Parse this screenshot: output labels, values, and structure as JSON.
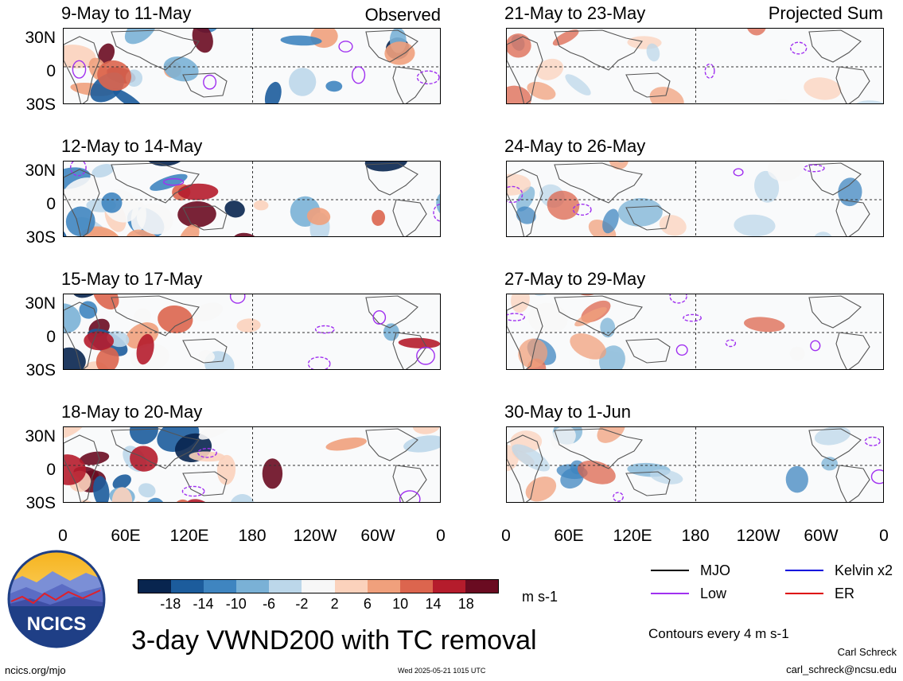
{
  "left_tag": "Observed",
  "right_tag": "Projected Sum",
  "left_panels": [
    {
      "title": "9-May to 11-May"
    },
    {
      "title": "12-May to 14-May"
    },
    {
      "title": "15-May to 17-May"
    },
    {
      "title": "18-May to 20-May"
    }
  ],
  "right_panels": [
    {
      "title": "21-May to 23-May"
    },
    {
      "title": "24-May to 26-May"
    },
    {
      "title": "27-May to 29-May"
    },
    {
      "title": "30-May to 1-Jun"
    }
  ],
  "lat_labels": [
    "30N",
    "0",
    "30S"
  ],
  "lon_labels": [
    "0",
    "60E",
    "120E",
    "180",
    "120W",
    "60W",
    "0"
  ],
  "colorbar": {
    "ticks": [
      "-18",
      "-14",
      "-10",
      "-6",
      "-2",
      "2",
      "6",
      "10",
      "14",
      "18"
    ],
    "colors": [
      "#08254f",
      "#1c5c9c",
      "#3f85c0",
      "#7ab1d6",
      "#bcd7ea",
      "#f7f7f7",
      "#fbd2bc",
      "#f0a07c",
      "#dc654e",
      "#b51c2c",
      "#6a0b21"
    ],
    "units": "m s-1"
  },
  "main_title": "3-day VWND200 with TC removal",
  "legend": [
    {
      "label": "MJO",
      "color": "#000000"
    },
    {
      "label": "Kelvin x2",
      "color": "#0000dd"
    },
    {
      "label": "Low",
      "color": "#a030f0"
    },
    {
      "label": "ER",
      "color": "#dd0000"
    }
  ],
  "contours_note": "Contours every 4 m s-1",
  "author_name": "Carl Schreck",
  "author_email": "carl_schreck@ncsu.edu",
  "site": "ncics.org/mjo",
  "timestamp": "Wed 2025-05-21 1015 UTC",
  "logo_text": "NCICS"
}
